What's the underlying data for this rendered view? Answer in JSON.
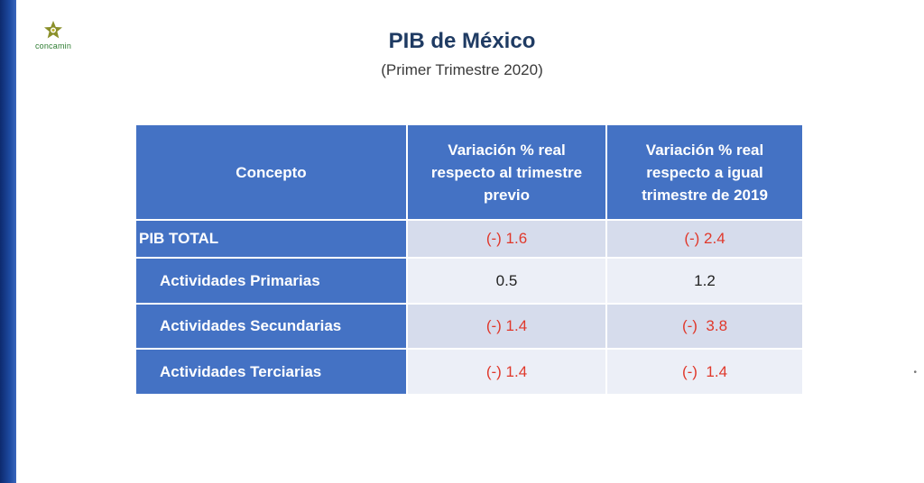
{
  "logo": {
    "text": "concamin"
  },
  "header": {
    "title": "PIB de México",
    "subtitle": "(Primer Trimestre 2020)"
  },
  "table": {
    "headers": [
      "Concepto",
      "Variación % real respecto al trimestre previo",
      "Variación % real respecto a igual trimestre de 2019"
    ],
    "rows": [
      {
        "label": "PIB TOTAL",
        "quarterly": "(-) 1.6",
        "annual": "(-) 2.4"
      },
      {
        "label": "Actividades Primarias",
        "quarterly": "0.5",
        "annual": "1.2"
      },
      {
        "label": "Actividades Secundarias",
        "quarterly": "(-) 1.4",
        "annual": "(-)  3.8"
      },
      {
        "label": "Actividades Terciarias",
        "quarterly": "(-) 1.4",
        "annual": "(-)  1.4"
      }
    ]
  },
  "colors": {
    "header_bg": "#4472c4",
    "negative_text": "#e0382b",
    "title_text": "#1f3b63",
    "row_shade": "#d6dcec",
    "row_light": "#eceff7"
  }
}
